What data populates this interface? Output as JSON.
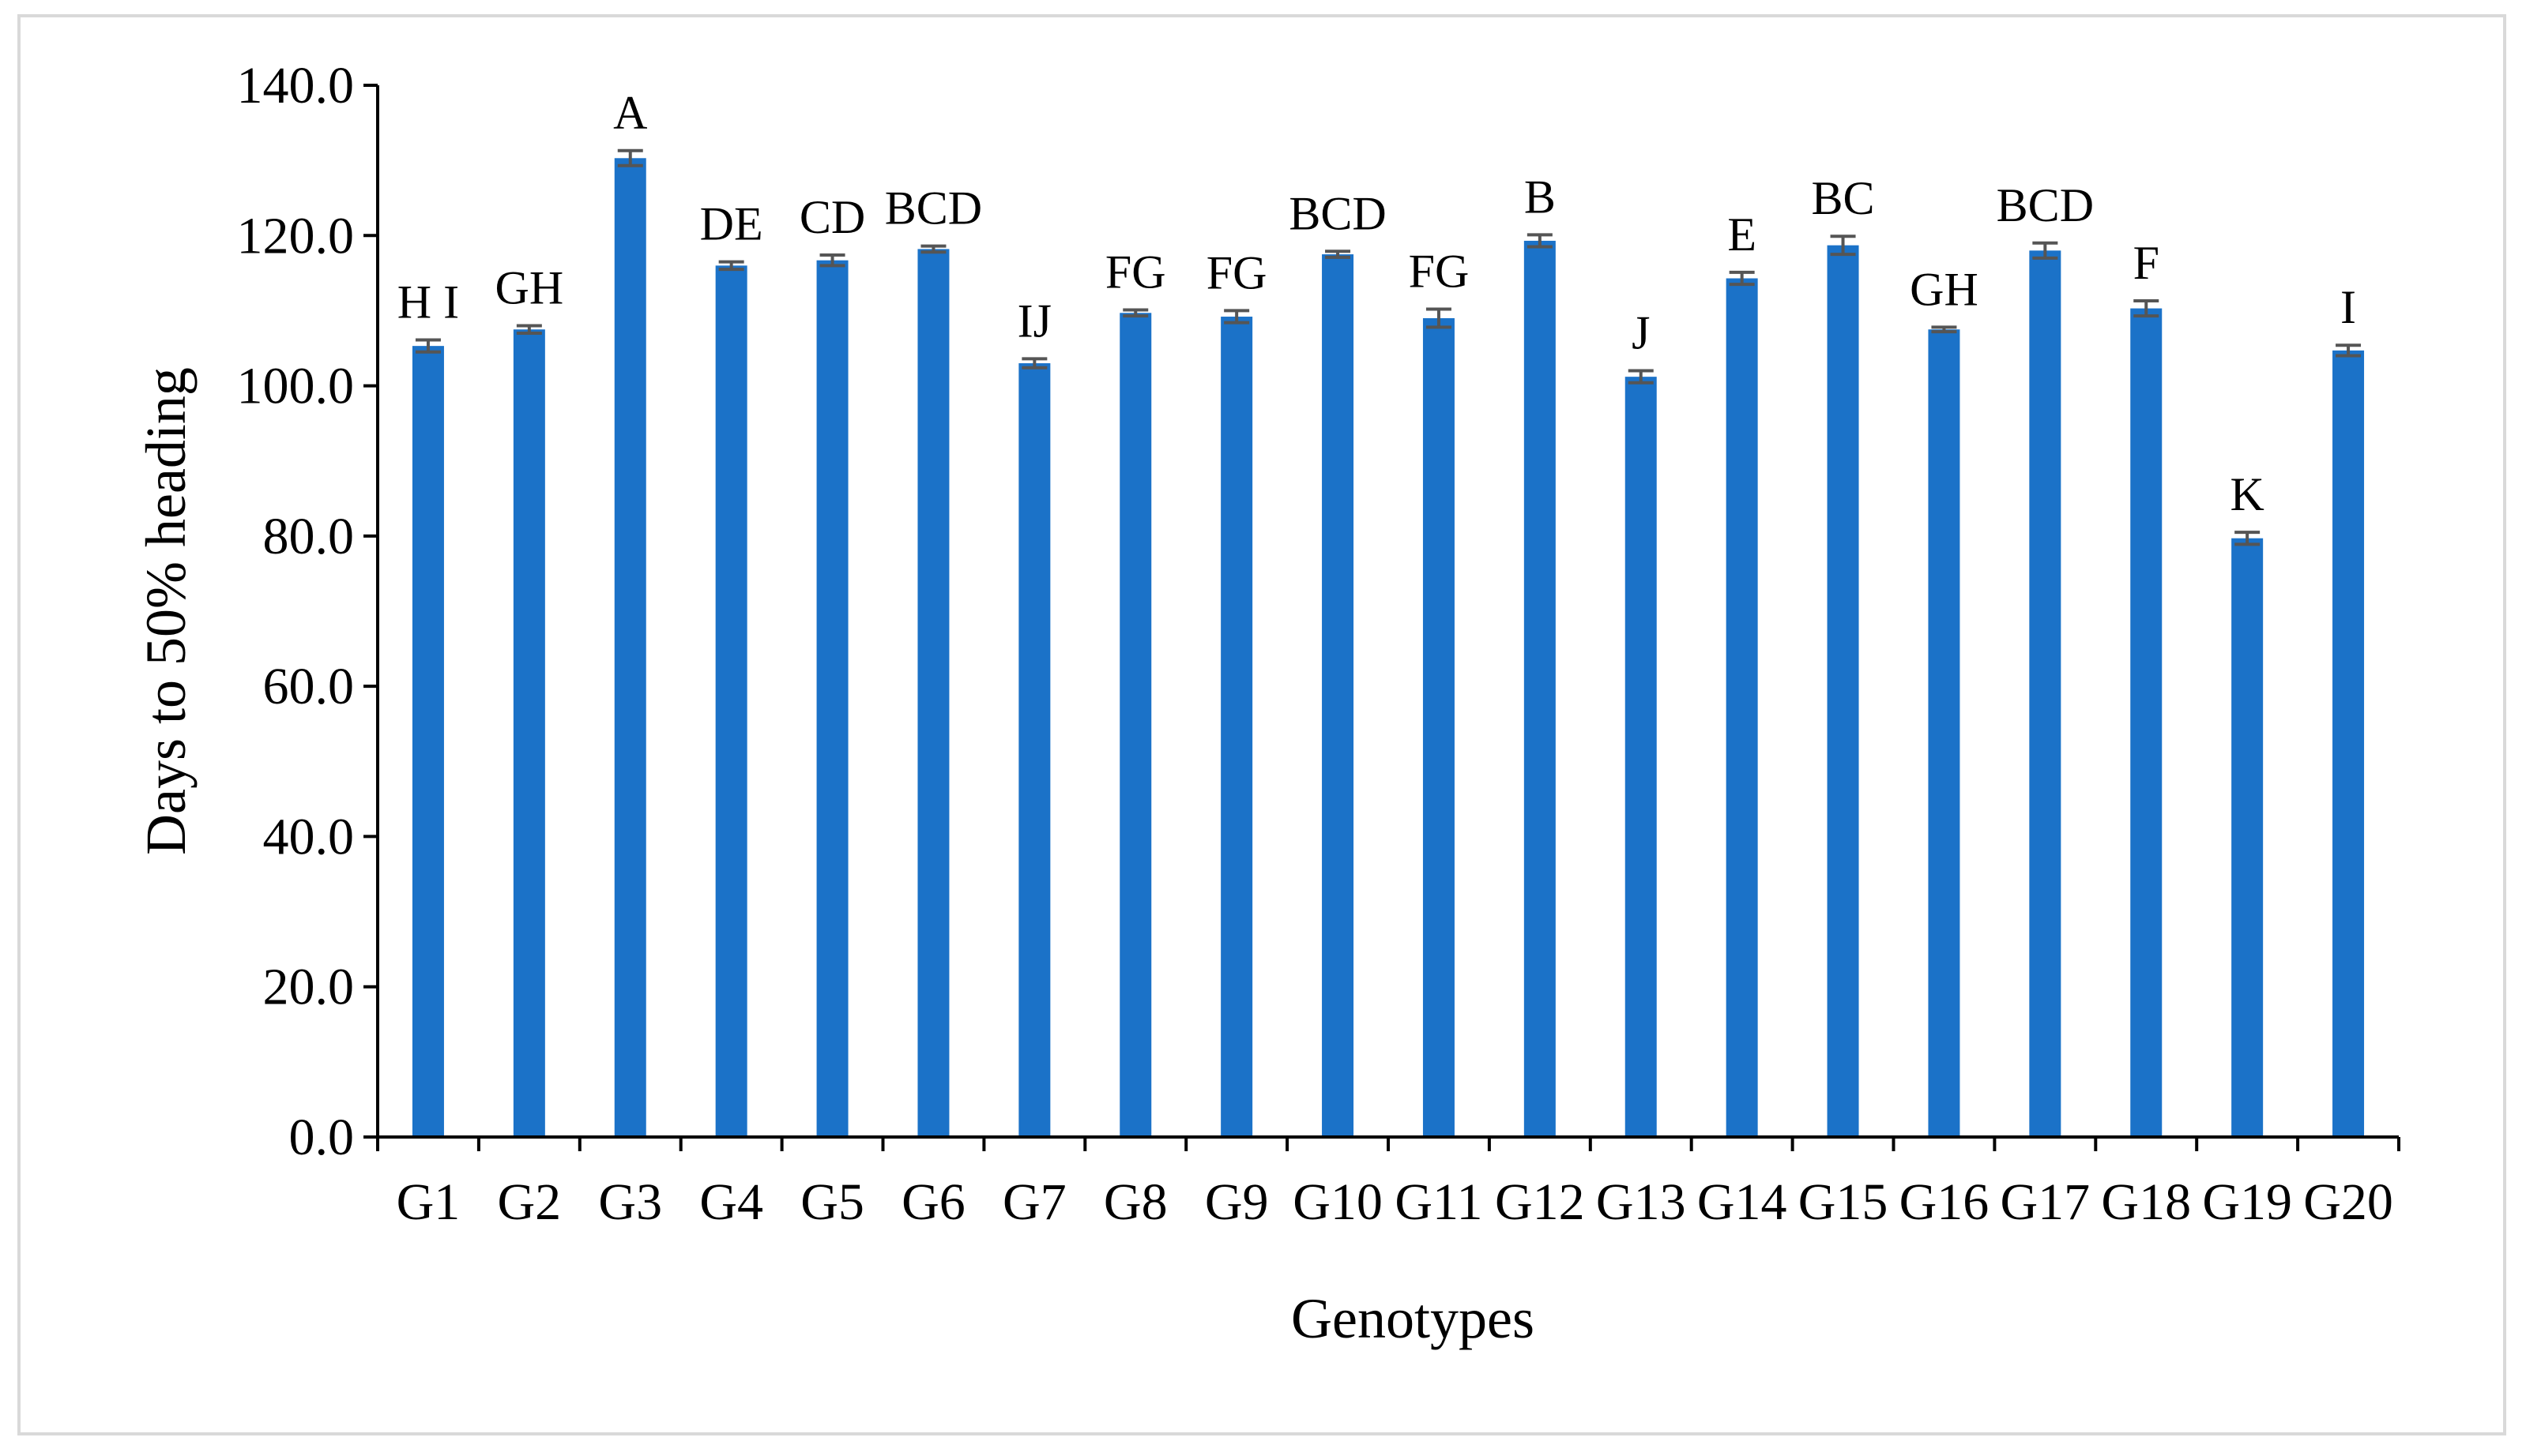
{
  "chart_data": {
    "type": "bar",
    "xlabel": "Genotypes",
    "ylabel": "Days to 50% heading",
    "ylim": [
      0,
      140
    ],
    "y_ticks": [
      "0.0",
      "20.0",
      "40.0",
      "60.0",
      "80.0",
      "100.0",
      "120.0",
      "140.0"
    ],
    "grid": false,
    "legend": "none",
    "bar_color": "#1b72c8",
    "error_bar_color": "#555555",
    "categories": [
      "G1",
      "G2",
      "G3",
      "G4",
      "G5",
      "G6",
      "G7",
      "G8",
      "G9",
      "G10",
      "G11",
      "G12",
      "G13",
      "G14",
      "G15",
      "G16",
      "G17",
      "G18",
      "G19",
      "G20"
    ],
    "values": [
      105.3,
      107.5,
      130.3,
      116.0,
      116.7,
      118.2,
      103.0,
      109.7,
      109.2,
      117.5,
      109.0,
      119.3,
      101.2,
      114.3,
      118.7,
      107.5,
      118.0,
      110.3,
      79.7,
      104.7
    ],
    "errors": [
      0.8,
      0.5,
      1.0,
      0.5,
      0.7,
      0.4,
      0.6,
      0.4,
      0.8,
      0.4,
      1.2,
      0.8,
      0.8,
      0.8,
      1.2,
      0.3,
      1.0,
      1.0,
      0.8,
      0.7
    ],
    "significance_letters": [
      "H I",
      "GH",
      "A",
      "DE",
      "CD",
      "BCD",
      "IJ",
      "FG",
      "FG",
      "BCD",
      "FG",
      "B",
      "J",
      "E",
      "BC",
      "GH",
      "BCD",
      "F",
      "K",
      "I"
    ]
  }
}
